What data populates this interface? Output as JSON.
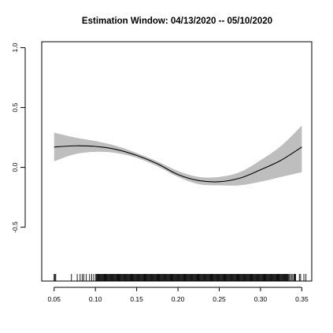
{
  "chart_data": {
    "type": "line",
    "title": "Estimation Window: 04/13/2020 -- 05/10/2020",
    "xlabel": "",
    "ylabel": "",
    "xlim": [
      0.035,
      0.362
    ],
    "ylim": [
      -0.95,
      1.05
    ],
    "x_ticks": [
      {
        "value": 0.05,
        "label": "0.05"
      },
      {
        "value": 0.1,
        "label": "0.10"
      },
      {
        "value": 0.15,
        "label": "0.15"
      },
      {
        "value": 0.2,
        "label": "0.20"
      },
      {
        "value": 0.25,
        "label": "0.25"
      },
      {
        "value": 0.3,
        "label": "0.30"
      },
      {
        "value": 0.35,
        "label": "0.35"
      }
    ],
    "y_ticks": [
      {
        "value": 1.0,
        "label": "1.0"
      },
      {
        "value": 0.5,
        "label": "0.5"
      },
      {
        "value": 0.0,
        "label": "0.0"
      },
      {
        "value": -0.5,
        "label": "-0.5"
      }
    ],
    "series": [
      {
        "x": [
          0.05,
          0.075,
          0.1,
          0.125,
          0.15,
          0.175,
          0.2,
          0.225,
          0.25,
          0.275,
          0.3,
          0.325,
          0.35
        ],
        "y": [
          0.17,
          0.18,
          0.175,
          0.15,
          0.1,
          0.03,
          -0.06,
          -0.11,
          -0.12,
          -0.09,
          -0.02,
          0.06,
          0.17
        ],
        "lower": [
          0.05,
          0.11,
          0.13,
          0.12,
          0.08,
          0.01,
          -0.08,
          -0.14,
          -0.15,
          -0.15,
          -0.12,
          -0.08,
          -0.04
        ],
        "upper": [
          0.29,
          0.25,
          0.22,
          0.18,
          0.12,
          0.05,
          -0.03,
          -0.08,
          -0.08,
          -0.04,
          0.06,
          0.18,
          0.35
        ]
      }
    ],
    "band_color": "#bebebe",
    "line_color": "#000000",
    "rug": {
      "sparse_ticks": [
        0.05,
        0.051,
        0.052,
        0.071,
        0.078,
        0.0815,
        0.084,
        0.086,
        0.089,
        0.093,
        0.0955,
        0.098,
        0.3325,
        0.3335,
        0.3345,
        0.336,
        0.3375,
        0.339,
        0.3405,
        0.3415,
        0.3425,
        0.347,
        0.3485,
        0.3525,
        0.355
      ],
      "dense_ranges": [
        [
          0.1005,
          0.332
        ]
      ],
      "dense_step": 0.0009
    }
  }
}
